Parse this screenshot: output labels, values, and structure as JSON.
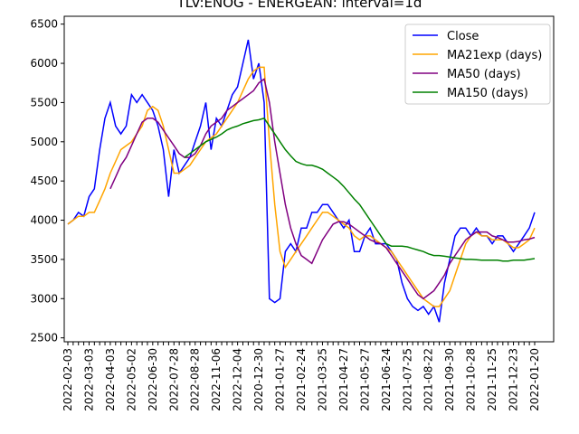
{
  "chart_data": {
    "type": "line",
    "title": "TLV:ENOG - ENERGEAN: interval=1d",
    "categories": [
      "2022-02-03",
      null,
      null,
      null,
      "2022-03-03",
      null,
      null,
      null,
      "2022-04-03",
      null,
      null,
      null,
      "2022-05-02",
      null,
      null,
      null,
      "2022-06-30",
      null,
      null,
      null,
      "2022-07-28",
      null,
      null,
      null,
      "2022-08-28",
      null,
      null,
      null,
      "2022-11-06",
      null,
      null,
      null,
      "2022-12-04",
      null,
      null,
      null,
      "2020-12-30",
      null,
      null,
      null,
      "2021-01-27",
      null,
      null,
      null,
      "2021-02-24",
      null,
      null,
      null,
      "2021-03-25",
      null,
      null,
      null,
      "2021-04-27",
      null,
      null,
      null,
      "2021-05-27",
      null,
      null,
      null,
      "2021-06-24",
      null,
      null,
      null,
      "2021-07-25",
      null,
      null,
      null,
      "2021-08-22",
      null,
      null,
      null,
      "2021-09-30",
      null,
      null,
      null,
      "2021-10-28",
      null,
      null,
      null,
      "2021-11-25",
      null,
      null,
      null,
      "2021-12-23",
      null,
      null,
      null,
      "2022-01-20"
    ],
    "series": [
      {
        "name": "Close",
        "color": "#0000ff",
        "values": [
          3950,
          4000,
          4100,
          4050,
          4300,
          4400,
          4900,
          5300,
          5500,
          5200,
          5100,
          5200,
          5600,
          5500,
          5600,
          5500,
          5400,
          5200,
          4900,
          4300,
          4900,
          4600,
          4700,
          4800,
          5000,
          5200,
          5500,
          4900,
          5300,
          5200,
          5400,
          5600,
          5700,
          6000,
          6300,
          5800,
          6000,
          5500,
          3000,
          2950,
          3000,
          3600,
          3700,
          3600,
          3900,
          3900,
          4100,
          4100,
          4200,
          4200,
          4100,
          4000,
          3900,
          4000,
          3600,
          3600,
          3800,
          3900,
          3700,
          3700,
          3700,
          3600,
          3500,
          3200,
          3000,
          2900,
          2850,
          2900,
          2800,
          2900,
          2700,
          3200,
          3500,
          3800,
          3900,
          3900,
          3800,
          3900,
          3800,
          3800,
          3700,
          3800,
          3800,
          3700,
          3600,
          3700,
          3800,
          3900,
          4100
        ]
      },
      {
        "name": "MA21exp (days)",
        "color": "#ffa500",
        "values": [
          3950,
          4000,
          4050,
          4050,
          4100,
          4100,
          4250,
          4400,
          4600,
          4750,
          4900,
          4950,
          5000,
          5100,
          5200,
          5400,
          5450,
          5400,
          5200,
          4900,
          4600,
          4600,
          4650,
          4700,
          4800,
          4900,
          5000,
          5050,
          5100,
          5200,
          5300,
          5400,
          5500,
          5650,
          5800,
          5900,
          5950,
          5950,
          5000,
          4200,
          3600,
          3400,
          3500,
          3600,
          3700,
          3800,
          3900,
          4000,
          4100,
          4100,
          4050,
          4000,
          3950,
          3900,
          3800,
          3750,
          3800,
          3800,
          3750,
          3700,
          3650,
          3600,
          3500,
          3400,
          3300,
          3200,
          3100,
          3000,
          2950,
          2900,
          2900,
          3000,
          3100,
          3300,
          3500,
          3700,
          3800,
          3850,
          3800,
          3800,
          3750,
          3750,
          3750,
          3700,
          3650,
          3650,
          3700,
          3750,
          3900
        ]
      },
      {
        "name": "MA50 (days)",
        "color": "#800080",
        "values": [
          null,
          null,
          null,
          null,
          null,
          null,
          null,
          null,
          4400,
          4550,
          4700,
          4800,
          4950,
          5100,
          5250,
          5300,
          5300,
          5250,
          5150,
          5050,
          4950,
          4850,
          4800,
          4800,
          4850,
          4950,
          5100,
          5200,
          5250,
          5300,
          5400,
          5450,
          5500,
          5550,
          5600,
          5650,
          5750,
          5800,
          5500,
          5000,
          4600,
          4200,
          3900,
          3700,
          3550,
          3500,
          3450,
          3600,
          3750,
          3850,
          3950,
          3980,
          3980,
          3950,
          3900,
          3850,
          3800,
          3750,
          3720,
          3700,
          3650,
          3550,
          3450,
          3350,
          3250,
          3150,
          3050,
          3000,
          3050,
          3100,
          3200,
          3300,
          3450,
          3550,
          3650,
          3750,
          3800,
          3850,
          3850,
          3850,
          3800,
          3780,
          3750,
          3720,
          3720,
          3730,
          3750,
          3760,
          3780
        ]
      },
      {
        "name": "MA150 (days)",
        "color": "#008000",
        "values": [
          null,
          null,
          null,
          null,
          null,
          null,
          null,
          null,
          null,
          null,
          null,
          null,
          null,
          null,
          null,
          null,
          null,
          null,
          null,
          null,
          null,
          null,
          4800,
          4850,
          4900,
          4950,
          5000,
          5030,
          5060,
          5100,
          5150,
          5180,
          5200,
          5230,
          5250,
          5270,
          5280,
          5300,
          5200,
          5100,
          5000,
          4900,
          4820,
          4750,
          4720,
          4700,
          4700,
          4680,
          4650,
          4600,
          4550,
          4500,
          4430,
          4350,
          4270,
          4200,
          4100,
          4000,
          3900,
          3800,
          3700,
          3670,
          3670,
          3670,
          3660,
          3640,
          3620,
          3600,
          3570,
          3550,
          3550,
          3540,
          3530,
          3520,
          3510,
          3500,
          3500,
          3495,
          3490,
          3490,
          3490,
          3490,
          3480,
          3480,
          3490,
          3490,
          3490,
          3500,
          3510
        ]
      }
    ],
    "ylim": [
      2450,
      6600
    ],
    "yticks": [
      2500,
      3000,
      3500,
      4000,
      4500,
      5000,
      5500,
      6000,
      6500
    ],
    "legend": "upper right",
    "grid": false
  }
}
